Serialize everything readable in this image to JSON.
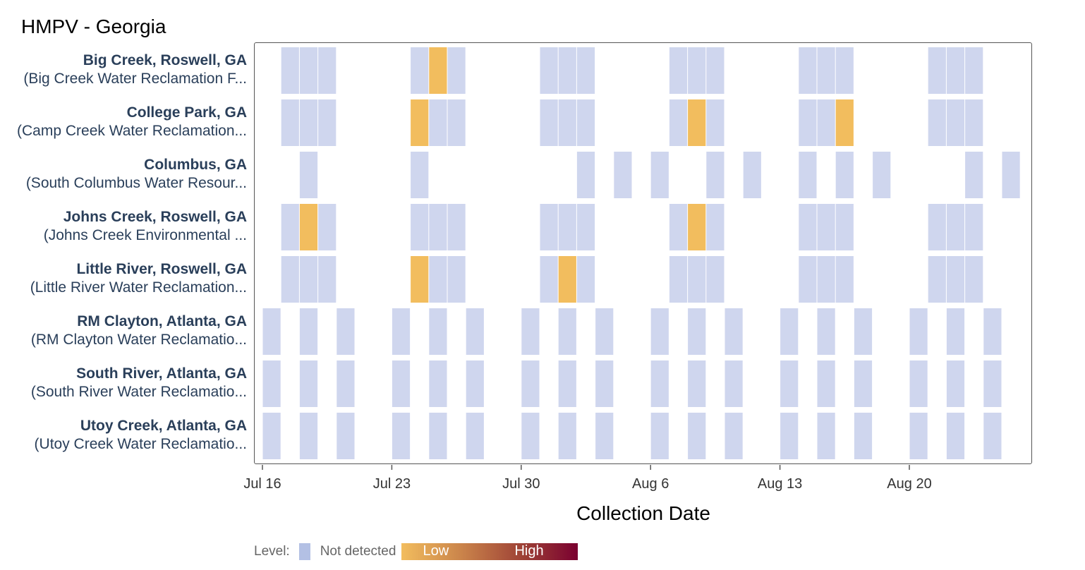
{
  "title": "HMPV - Georgia",
  "chart_data": {
    "type": "heatmap",
    "title": "HMPV - Georgia",
    "xlabel": "Collection Date",
    "ylabel": "",
    "x_start_date": "Jul 16",
    "x_tick_labels": [
      "Jul 16",
      "Jul 23",
      "Jul 30",
      "Aug 6",
      "Aug 13",
      "Aug 20"
    ],
    "x_tick_days": [
      0,
      7,
      14,
      21,
      28,
      35
    ],
    "x_range_days": [
      -0.4,
      41.6
    ],
    "colors": {
      "not_detected": "#cfd6ee",
      "low": "#f2bd5e",
      "high": "#7a0030"
    },
    "legend": {
      "title": "Level:",
      "not_detected": "Not detected",
      "low": "Low",
      "high": "High",
      "placement": "bottom-left"
    },
    "rows": [
      {
        "name": "Big Creek, Roswell, GA",
        "facility": "(Big Creek Water Reclamation F...",
        "samples": [
          [
            1,
            "nd"
          ],
          [
            2,
            "nd"
          ],
          [
            3,
            "nd"
          ],
          [
            8,
            "nd"
          ],
          [
            9,
            "low"
          ],
          [
            10,
            "nd"
          ],
          [
            15,
            "nd"
          ],
          [
            16,
            "nd"
          ],
          [
            17,
            "nd"
          ],
          [
            22,
            "nd"
          ],
          [
            23,
            "nd"
          ],
          [
            24,
            "nd"
          ],
          [
            29,
            "nd"
          ],
          [
            30,
            "nd"
          ],
          [
            31,
            "nd"
          ],
          [
            36,
            "nd"
          ],
          [
            37,
            "nd"
          ],
          [
            38,
            "nd"
          ]
        ]
      },
      {
        "name": "College Park, GA",
        "facility": "(Camp Creek Water Reclamation...",
        "samples": [
          [
            1,
            "nd"
          ],
          [
            2,
            "nd"
          ],
          [
            3,
            "nd"
          ],
          [
            8,
            "low"
          ],
          [
            9,
            "nd"
          ],
          [
            10,
            "nd"
          ],
          [
            15,
            "nd"
          ],
          [
            16,
            "nd"
          ],
          [
            17,
            "nd"
          ],
          [
            22,
            "nd"
          ],
          [
            23,
            "low"
          ],
          [
            24,
            "nd"
          ],
          [
            29,
            "nd"
          ],
          [
            30,
            "nd"
          ],
          [
            31,
            "low"
          ],
          [
            36,
            "nd"
          ],
          [
            37,
            "nd"
          ],
          [
            38,
            "nd"
          ]
        ]
      },
      {
        "name": "Columbus, GA",
        "facility": "(South Columbus Water Resour...",
        "samples": [
          [
            2,
            "nd"
          ],
          [
            8,
            "nd"
          ],
          [
            17,
            "nd"
          ],
          [
            19,
            "nd"
          ],
          [
            21,
            "nd"
          ],
          [
            24,
            "nd"
          ],
          [
            26,
            "nd"
          ],
          [
            29,
            "nd"
          ],
          [
            31,
            "nd"
          ],
          [
            33,
            "nd"
          ],
          [
            38,
            "nd"
          ],
          [
            40,
            "nd"
          ]
        ]
      },
      {
        "name": "Johns Creek, Roswell, GA",
        "facility": "(Johns Creek Environmental ...",
        "samples": [
          [
            1,
            "nd"
          ],
          [
            2,
            "low"
          ],
          [
            3,
            "nd"
          ],
          [
            8,
            "nd"
          ],
          [
            9,
            "nd"
          ],
          [
            10,
            "nd"
          ],
          [
            15,
            "nd"
          ],
          [
            16,
            "nd"
          ],
          [
            17,
            "nd"
          ],
          [
            22,
            "nd"
          ],
          [
            23,
            "low"
          ],
          [
            24,
            "nd"
          ],
          [
            29,
            "nd"
          ],
          [
            30,
            "nd"
          ],
          [
            31,
            "nd"
          ],
          [
            36,
            "nd"
          ],
          [
            37,
            "nd"
          ],
          [
            38,
            "nd"
          ]
        ]
      },
      {
        "name": "Little River, Roswell, GA",
        "facility": "(Little River Water Reclamation...",
        "samples": [
          [
            1,
            "nd"
          ],
          [
            2,
            "nd"
          ],
          [
            3,
            "nd"
          ],
          [
            8,
            "low"
          ],
          [
            9,
            "nd"
          ],
          [
            10,
            "nd"
          ],
          [
            15,
            "nd"
          ],
          [
            16,
            "low"
          ],
          [
            17,
            "nd"
          ],
          [
            22,
            "nd"
          ],
          [
            23,
            "nd"
          ],
          [
            24,
            "nd"
          ],
          [
            29,
            "nd"
          ],
          [
            30,
            "nd"
          ],
          [
            31,
            "nd"
          ],
          [
            36,
            "nd"
          ],
          [
            37,
            "nd"
          ],
          [
            38,
            "nd"
          ]
        ]
      },
      {
        "name": "RM Clayton, Atlanta, GA",
        "facility": "(RM Clayton Water Reclamatio...",
        "samples": [
          [
            0,
            "nd"
          ],
          [
            2,
            "nd"
          ],
          [
            4,
            "nd"
          ],
          [
            7,
            "nd"
          ],
          [
            9,
            "nd"
          ],
          [
            11,
            "nd"
          ],
          [
            14,
            "nd"
          ],
          [
            16,
            "nd"
          ],
          [
            18,
            "nd"
          ],
          [
            21,
            "nd"
          ],
          [
            23,
            "nd"
          ],
          [
            25,
            "nd"
          ],
          [
            28,
            "nd"
          ],
          [
            30,
            "nd"
          ],
          [
            32,
            "nd"
          ],
          [
            35,
            "nd"
          ],
          [
            37,
            "nd"
          ],
          [
            39,
            "nd"
          ]
        ]
      },
      {
        "name": "South River, Atlanta, GA",
        "facility": "(South River Water Reclamatio...",
        "samples": [
          [
            0,
            "nd"
          ],
          [
            2,
            "nd"
          ],
          [
            4,
            "nd"
          ],
          [
            7,
            "nd"
          ],
          [
            9,
            "nd"
          ],
          [
            11,
            "nd"
          ],
          [
            14,
            "nd"
          ],
          [
            16,
            "nd"
          ],
          [
            18,
            "nd"
          ],
          [
            21,
            "nd"
          ],
          [
            23,
            "nd"
          ],
          [
            25,
            "nd"
          ],
          [
            28,
            "nd"
          ],
          [
            30,
            "nd"
          ],
          [
            32,
            "nd"
          ],
          [
            35,
            "nd"
          ],
          [
            37,
            "nd"
          ],
          [
            39,
            "nd"
          ]
        ]
      },
      {
        "name": "Utoy Creek, Atlanta, GA",
        "facility": "(Utoy Creek Water Reclamatio...",
        "samples": [
          [
            0,
            "nd"
          ],
          [
            2,
            "nd"
          ],
          [
            4,
            "nd"
          ],
          [
            7,
            "nd"
          ],
          [
            9,
            "nd"
          ],
          [
            11,
            "nd"
          ],
          [
            14,
            "nd"
          ],
          [
            16,
            "nd"
          ],
          [
            18,
            "nd"
          ],
          [
            21,
            "nd"
          ],
          [
            23,
            "nd"
          ],
          [
            25,
            "nd"
          ],
          [
            28,
            "nd"
          ],
          [
            30,
            "nd"
          ],
          [
            32,
            "nd"
          ],
          [
            35,
            "nd"
          ],
          [
            37,
            "nd"
          ],
          [
            39,
            "nd"
          ]
        ]
      }
    ]
  }
}
